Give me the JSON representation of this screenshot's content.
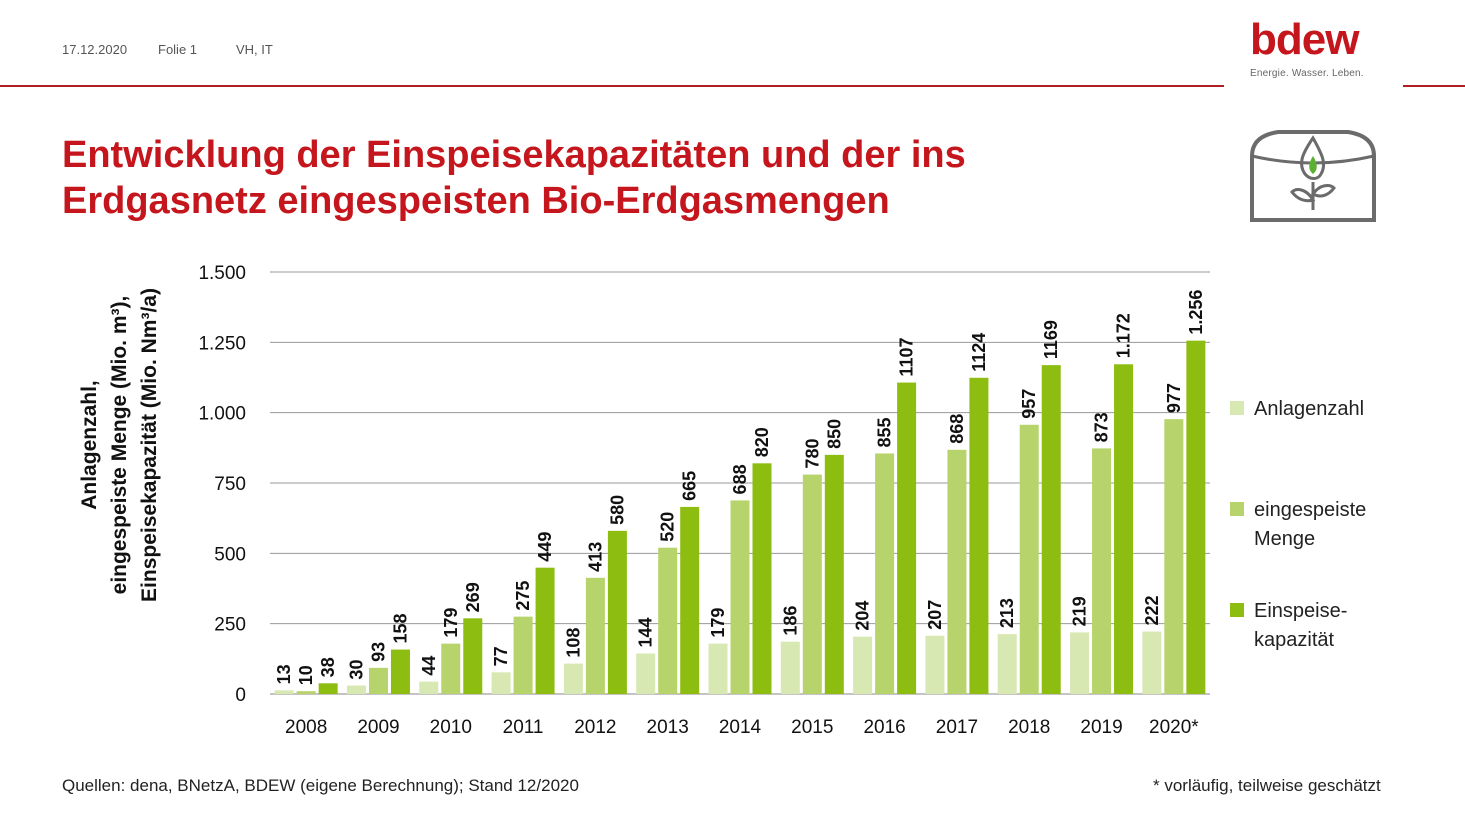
{
  "header": {
    "date": "17.12.2020",
    "slide": "Folie 1",
    "author": "VH, IT"
  },
  "logo": {
    "word": "bdew",
    "tagline": "Energie. Wasser. Leben."
  },
  "icon": "biogas-tank-icon",
  "title_line1": "Entwicklung der Einspeisekapazitäten und der ins",
  "title_line2": "Erdgasnetz eingespeisten Bio-Erdgasmengen",
  "colors": {
    "brand_red": "#c4161c",
    "anlagenzahl": "#d7e8b3",
    "menge": "#b7d46c",
    "kapazitaet": "#8ebd12",
    "grid": "#999999"
  },
  "chart_data": {
    "type": "bar",
    "ylabel_lines": [
      "Anlagenzahl,",
      "eingespeiste Menge (Mio. m³),",
      "Einspeisekapazität (Mio. Nm³/a)"
    ],
    "ylim": [
      0,
      1500
    ],
    "yticks": [
      0,
      250,
      500,
      750,
      1000,
      1250,
      1500
    ],
    "ytick_labels": [
      "0",
      "250",
      "500",
      "750",
      "1.000",
      "1.250",
      "1.500"
    ],
    "categories": [
      "2008",
      "2009",
      "2010",
      "2011",
      "2012",
      "2013",
      "2014",
      "2015",
      "2016",
      "2017",
      "2018",
      "2019",
      "2020*"
    ],
    "series": [
      {
        "name": "Anlagenzahl",
        "values": [
          13,
          30,
          44,
          77,
          108,
          144,
          179,
          186,
          204,
          207,
          213,
          219,
          222
        ],
        "labels": [
          "13",
          "30",
          "44",
          "77",
          "108",
          "144",
          "179",
          "186",
          "204",
          "207",
          "213",
          "219",
          "222"
        ]
      },
      {
        "name": "eingespeiste Menge",
        "values": [
          10,
          93,
          179,
          275,
          413,
          520,
          688,
          780,
          855,
          868,
          957,
          873,
          977
        ],
        "labels": [
          "10",
          "93",
          "179",
          "275",
          "413",
          "520",
          "688",
          "780",
          "855",
          "868",
          "957",
          "873",
          "977"
        ]
      },
      {
        "name": "Einspeise-kapazität",
        "values": [
          38,
          158,
          269,
          449,
          580,
          665,
          820,
          850,
          1107,
          1124,
          1169,
          1172,
          1256
        ],
        "labels": [
          "38",
          "158",
          "269",
          "449",
          "580",
          "665",
          "820",
          "850",
          "1107",
          "1124",
          "1169",
          "1.172",
          "1.256"
        ]
      }
    ],
    "legend": {
      "position": "right",
      "items": [
        {
          "lines": [
            "Anlagenzahl"
          ]
        },
        {
          "lines": [
            "eingespeiste",
            "Menge"
          ]
        },
        {
          "lines": [
            "Einspeise-",
            "kapazität"
          ]
        }
      ]
    },
    "grid": true
  },
  "footer": {
    "source": "Quellen: dena, BNetzA, BDEW (eigene Berechnung); Stand 12/2020",
    "note": "* vorläufig, teilweise geschätzt"
  }
}
